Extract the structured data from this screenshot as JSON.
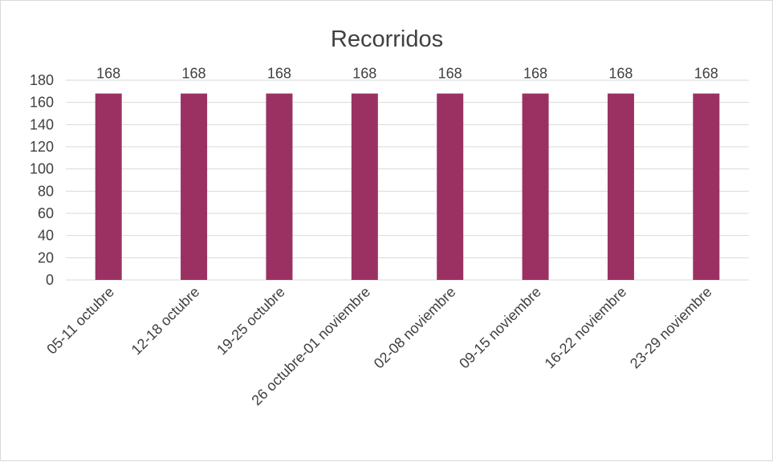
{
  "chart_data": {
    "type": "bar",
    "title": "Recorridos",
    "categories": [
      "05-11 octubre",
      "12-18 octubre",
      "19-25 octubre",
      "26 octubre-01 noviembre",
      "02-08 noviembre",
      "09-15 noviembre",
      "16-22 noviembre",
      "23-29 noviembre"
    ],
    "values": [
      168,
      168,
      168,
      168,
      168,
      168,
      168,
      168
    ],
    "ylim": [
      0,
      180
    ],
    "yticks": [
      0,
      20,
      40,
      60,
      80,
      100,
      120,
      140,
      160,
      180
    ],
    "grid": true,
    "data_labels": true,
    "colors": {
      "bar": "#9b3163",
      "grid": "#d9d9d9",
      "text": "#404040"
    }
  }
}
